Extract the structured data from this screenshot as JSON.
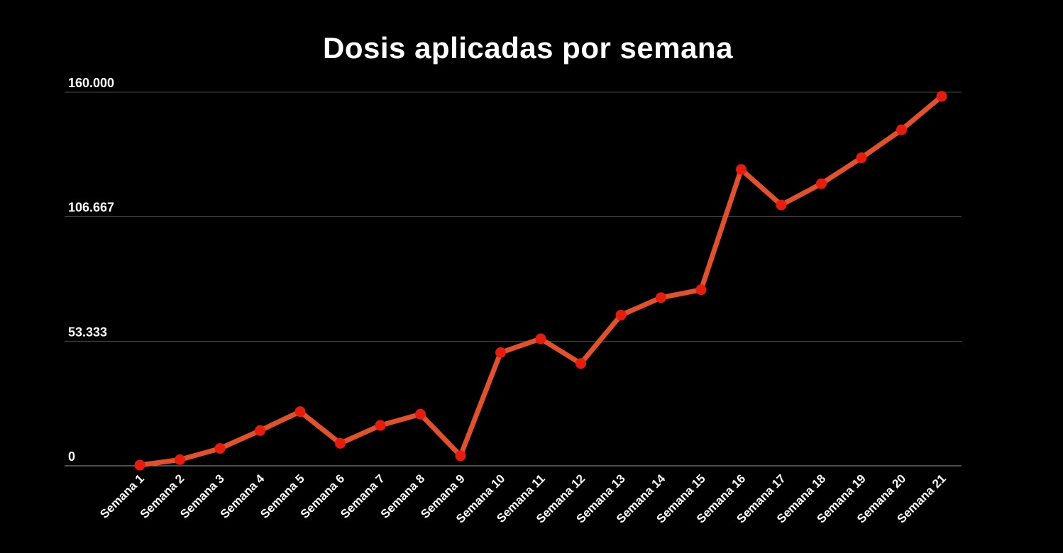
{
  "chart_data": {
    "type": "line",
    "title": "Dosis aplicadas por semana",
    "categories": [
      "Semana 1",
      "Semana 2",
      "Semana 3",
      "Semana 4",
      "Semana 5",
      "Semana 6",
      "Semana 7",
      "Semana 8",
      "Semana 9",
      "Semana 10",
      "Semana 11",
      "Semana 12",
      "Semana 13",
      "Semana 14",
      "Semana 15",
      "Semana 16",
      "Semana 17",
      "Semana 18",
      "Semana 19",
      "Semana 20",
      "Semana 21"
    ],
    "values": [
      300,
      2600,
      7400,
      15100,
      23200,
      9600,
      17300,
      22100,
      4300,
      48500,
      54400,
      43800,
      64500,
      72000,
      75400,
      126900,
      111700,
      120800,
      131900,
      143900,
      158200
    ],
    "xlabel": "",
    "ylabel": "",
    "ylim": [
      0,
      160000
    ],
    "y_ticks": [
      {
        "label": "0",
        "value": 0
      },
      {
        "label": "53.333",
        "value": 53333
      },
      {
        "label": "106.667",
        "value": 106667
      },
      {
        "label": "160.000",
        "value": 160000
      }
    ],
    "grid": "horizontal-only",
    "legend": "none",
    "x_label_angle_deg": -45,
    "colors": {
      "background": "#000000",
      "line": "#e2502c",
      "point": "#e81c0d",
      "grid_line": "#474747",
      "axis_line": "#9e9e9e",
      "text": "#ffffff"
    }
  }
}
